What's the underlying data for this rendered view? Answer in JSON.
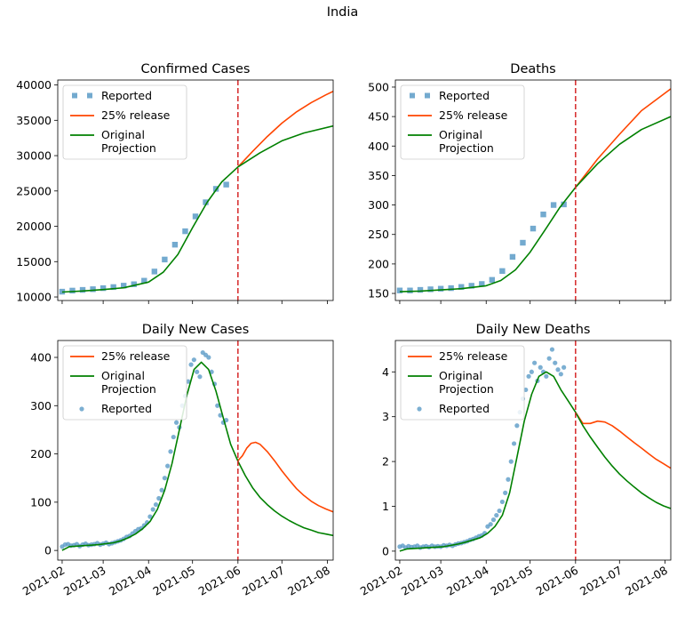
{
  "figure": {
    "title": "India"
  },
  "colors": {
    "reported": "#5b9bc7",
    "release": "#ff4500",
    "original": "#008000",
    "cutoff": "#d62728",
    "axis": "#000000"
  },
  "chart_data": [
    {
      "type": "line",
      "title": "Confirmed Cases",
      "xlabel": "",
      "ylabel": "",
      "x_ticks": [
        "2021-02",
        "2021-03",
        "2021-04",
        "2021-05",
        "2021-06",
        "2021-07",
        "2021-08"
      ],
      "y_ticks": [
        "10000",
        "15000",
        "20000",
        "25000",
        "30000",
        "35000",
        "40000"
      ],
      "ylim": [
        9500,
        40700
      ],
      "xlim_days": [
        -3,
        185
      ],
      "cutoff": "2021-06-01",
      "legend": {
        "position": "upper-left",
        "entries": [
          "Reported",
          "25% release",
          "Original\nProjection"
        ]
      },
      "series": [
        {
          "name": "Reported",
          "style": "square",
          "x": [
            "2021-02-01",
            "2021-02-08",
            "2021-02-15",
            "2021-02-22",
            "2021-03-01",
            "2021-03-08",
            "2021-03-15",
            "2021-03-22",
            "2021-03-29",
            "2021-04-05",
            "2021-04-12",
            "2021-04-19",
            "2021-04-26",
            "2021-05-03",
            "2021-05-10",
            "2021-05-17",
            "2021-05-24"
          ],
          "y": [
            10750,
            10900,
            11000,
            11100,
            11250,
            11400,
            11600,
            11800,
            12300,
            13600,
            15300,
            17400,
            19300,
            21400,
            23400,
            25300,
            25900
          ]
        },
        {
          "name": "25% release",
          "style": "line",
          "x": [
            "2021-06-01",
            "2021-06-11",
            "2021-06-21",
            "2021-07-01",
            "2021-07-11",
            "2021-07-21",
            "2021-07-31",
            "2021-08-05"
          ],
          "y": [
            28400,
            30600,
            32700,
            34600,
            36200,
            37500,
            38600,
            39100
          ]
        },
        {
          "name": "Original\nProjection",
          "style": "line",
          "x": [
            "2021-02-01",
            "2021-02-15",
            "2021-03-01",
            "2021-03-15",
            "2021-04-01",
            "2021-04-11",
            "2021-04-21",
            "2021-05-01",
            "2021-05-11",
            "2021-05-21",
            "2021-06-01",
            "2021-06-16",
            "2021-07-01",
            "2021-07-16",
            "2021-08-05"
          ],
          "y": [
            10700,
            10850,
            11050,
            11300,
            12100,
            13500,
            16000,
            19800,
            23400,
            26300,
            28400,
            30400,
            32100,
            33200,
            34200
          ]
        }
      ]
    },
    {
      "type": "line",
      "title": "Deaths",
      "xlabel": "",
      "ylabel": "",
      "x_ticks": [
        "2021-02",
        "2021-03",
        "2021-04",
        "2021-05",
        "2021-06",
        "2021-07",
        "2021-08"
      ],
      "y_ticks": [
        "150",
        "200",
        "250",
        "300",
        "350",
        "400",
        "450",
        "500"
      ],
      "ylim": [
        138,
        512
      ],
      "xlim_days": [
        -3,
        185
      ],
      "cutoff": "2021-06-01",
      "legend": {
        "position": "upper-left",
        "entries": [
          "Reported",
          "25% release",
          "Original\nProjection"
        ]
      },
      "series": [
        {
          "name": "Reported",
          "style": "square",
          "x": [
            "2021-02-01",
            "2021-02-08",
            "2021-02-15",
            "2021-02-22",
            "2021-03-01",
            "2021-03-08",
            "2021-03-15",
            "2021-03-22",
            "2021-03-29",
            "2021-04-05",
            "2021-04-12",
            "2021-04-19",
            "2021-04-26",
            "2021-05-03",
            "2021-05-10",
            "2021-05-17",
            "2021-05-24"
          ],
          "y": [
            155,
            155,
            156,
            157,
            158,
            159,
            161,
            163,
            166,
            173,
            188,
            212,
            236,
            260,
            284,
            300,
            301
          ]
        },
        {
          "name": "25% release",
          "style": "line",
          "x": [
            "2021-06-01",
            "2021-06-16",
            "2021-07-01",
            "2021-07-16",
            "2021-08-05"
          ],
          "y": [
            330,
            378,
            420,
            460,
            497
          ]
        },
        {
          "name": "Original\nProjection",
          "style": "line",
          "x": [
            "2021-02-01",
            "2021-02-15",
            "2021-03-01",
            "2021-03-15",
            "2021-04-01",
            "2021-04-11",
            "2021-04-21",
            "2021-05-01",
            "2021-05-11",
            "2021-05-21",
            "2021-06-01",
            "2021-06-16",
            "2021-07-01",
            "2021-07-16",
            "2021-08-05"
          ],
          "y": [
            153,
            154,
            156,
            158,
            163,
            172,
            190,
            220,
            257,
            295,
            330,
            370,
            403,
            428,
            450
          ]
        }
      ]
    },
    {
      "type": "line",
      "title": "Daily New Cases",
      "xlabel": "",
      "ylabel": "",
      "x_ticks": [
        "2021-02",
        "2021-03",
        "2021-04",
        "2021-05",
        "2021-06",
        "2021-07",
        "2021-08"
      ],
      "y_ticks": [
        "0",
        "100",
        "200",
        "300",
        "400"
      ],
      "ylim": [
        -20,
        435
      ],
      "xlim_days": [
        -3,
        185
      ],
      "cutoff": "2021-06-01",
      "legend": {
        "position": "upper-left",
        "entries": [
          "25% release",
          "Original\nProjection",
          "Reported"
        ]
      },
      "series": [
        {
          "name": "25% release",
          "style": "line",
          "x": [
            "2021-06-01",
            "2021-06-04",
            "2021-06-07",
            "2021-06-10",
            "2021-06-13",
            "2021-06-16",
            "2021-06-21",
            "2021-06-26",
            "2021-07-01",
            "2021-07-06",
            "2021-07-11",
            "2021-07-16",
            "2021-07-21",
            "2021-07-26",
            "2021-07-31",
            "2021-08-05"
          ],
          "y": [
            186,
            196,
            212,
            222,
            224,
            220,
            205,
            186,
            165,
            146,
            128,
            114,
            102,
            93,
            86,
            80
          ]
        },
        {
          "name": "Original\nProjection",
          "style": "line",
          "x": [
            "2021-02-01",
            "2021-02-06",
            "2021-02-11",
            "2021-02-16",
            "2021-02-21",
            "2021-02-26",
            "2021-03-03",
            "2021-03-08",
            "2021-03-13",
            "2021-03-18",
            "2021-03-23",
            "2021-03-28",
            "2021-04-02",
            "2021-04-07",
            "2021-04-12",
            "2021-04-17",
            "2021-04-22",
            "2021-04-27",
            "2021-05-02",
            "2021-05-07",
            "2021-05-12",
            "2021-05-17",
            "2021-05-22",
            "2021-05-27",
            "2021-06-01",
            "2021-06-06",
            "2021-06-11",
            "2021-06-16",
            "2021-06-21",
            "2021-06-26",
            "2021-07-01",
            "2021-07-06",
            "2021-07-11",
            "2021-07-16",
            "2021-07-21",
            "2021-07-26",
            "2021-07-31",
            "2021-08-05"
          ],
          "y": [
            0,
            8,
            9,
            10,
            11,
            12,
            14,
            16,
            20,
            26,
            34,
            45,
            60,
            85,
            125,
            180,
            250,
            320,
            375,
            390,
            375,
            330,
            275,
            220,
            185,
            155,
            130,
            110,
            95,
            82,
            71,
            62,
            54,
            47,
            42,
            37,
            34,
            31
          ]
        },
        {
          "name": "Reported",
          "style": "dot",
          "x": [
            "2021-02-01",
            "2021-02-03",
            "2021-02-05",
            "2021-02-07",
            "2021-02-09",
            "2021-02-11",
            "2021-02-13",
            "2021-02-15",
            "2021-02-17",
            "2021-02-19",
            "2021-02-21",
            "2021-02-23",
            "2021-02-25",
            "2021-02-27",
            "2021-03-01",
            "2021-03-03",
            "2021-03-05",
            "2021-03-07",
            "2021-03-09",
            "2021-03-11",
            "2021-03-13",
            "2021-03-15",
            "2021-03-17",
            "2021-03-19",
            "2021-03-21",
            "2021-03-23",
            "2021-03-25",
            "2021-03-27",
            "2021-03-29",
            "2021-03-31",
            "2021-04-02",
            "2021-04-04",
            "2021-04-06",
            "2021-04-08",
            "2021-04-10",
            "2021-04-12",
            "2021-04-14",
            "2021-04-16",
            "2021-04-18",
            "2021-04-20",
            "2021-04-22",
            "2021-04-24",
            "2021-04-26",
            "2021-04-28",
            "2021-04-30",
            "2021-05-02",
            "2021-05-04",
            "2021-05-06",
            "2021-05-08",
            "2021-05-10",
            "2021-05-12",
            "2021-05-14",
            "2021-05-16",
            "2021-05-18",
            "2021-05-20",
            "2021-05-22",
            "2021-05-24"
          ],
          "y": [
            8,
            12,
            13,
            10,
            11,
            13,
            9,
            12,
            14,
            11,
            12,
            13,
            15,
            12,
            14,
            16,
            13,
            15,
            17,
            19,
            21,
            24,
            28,
            30,
            35,
            40,
            44,
            46,
            52,
            58,
            70,
            85,
            95,
            108,
            125,
            150,
            175,
            205,
            235,
            265,
            255,
            300,
            320,
            350,
            385,
            395,
            370,
            360,
            410,
            405,
            400,
            370,
            345,
            300,
            280,
            265,
            270
          ]
        }
      ]
    },
    {
      "type": "line",
      "title": "Daily New Deaths",
      "xlabel": "",
      "ylabel": "",
      "x_ticks": [
        "2021-02",
        "2021-03",
        "2021-04",
        "2021-05",
        "2021-06",
        "2021-07",
        "2021-08"
      ],
      "y_ticks": [
        "0",
        "1",
        "2",
        "3",
        "4"
      ],
      "ylim": [
        -0.2,
        4.7
      ],
      "xlim_days": [
        -3,
        185
      ],
      "cutoff": "2021-06-01",
      "legend": {
        "position": "upper-left",
        "entries": [
          "25% release",
          "Original\nProjection",
          "Reported"
        ]
      },
      "series": [
        {
          "name": "25% release",
          "style": "line",
          "x": [
            "2021-06-01",
            "2021-06-06",
            "2021-06-11",
            "2021-06-16",
            "2021-06-21",
            "2021-06-26",
            "2021-07-01",
            "2021-07-06",
            "2021-07-11",
            "2021-07-16",
            "2021-07-21",
            "2021-07-26",
            "2021-07-31",
            "2021-08-05"
          ],
          "y": [
            3.1,
            2.85,
            2.85,
            2.9,
            2.88,
            2.8,
            2.68,
            2.55,
            2.42,
            2.3,
            2.17,
            2.05,
            1.95,
            1.85
          ]
        },
        {
          "name": "Original\nProjection",
          "style": "line",
          "x": [
            "2021-02-01",
            "2021-02-06",
            "2021-02-11",
            "2021-02-16",
            "2021-02-21",
            "2021-02-26",
            "2021-03-03",
            "2021-03-08",
            "2021-03-13",
            "2021-03-18",
            "2021-03-23",
            "2021-03-28",
            "2021-04-02",
            "2021-04-07",
            "2021-04-12",
            "2021-04-17",
            "2021-04-22",
            "2021-04-27",
            "2021-05-02",
            "2021-05-07",
            "2021-05-12",
            "2021-05-17",
            "2021-05-22",
            "2021-05-27",
            "2021-06-01",
            "2021-06-06",
            "2021-06-11",
            "2021-06-16",
            "2021-06-21",
            "2021-06-26",
            "2021-07-01",
            "2021-07-06",
            "2021-07-11",
            "2021-07-16",
            "2021-07-21",
            "2021-07-26",
            "2021-07-31",
            "2021-08-05"
          ],
          "y": [
            0,
            0.05,
            0.06,
            0.07,
            0.08,
            0.09,
            0.1,
            0.13,
            0.16,
            0.2,
            0.25,
            0.3,
            0.4,
            0.55,
            0.8,
            1.3,
            2.1,
            2.9,
            3.5,
            3.9,
            4.0,
            3.9,
            3.6,
            3.35,
            3.1,
            2.8,
            2.55,
            2.32,
            2.1,
            1.9,
            1.72,
            1.57,
            1.43,
            1.3,
            1.19,
            1.09,
            1.01,
            0.95
          ]
        },
        {
          "name": "Reported",
          "style": "dot",
          "x": [
            "2021-02-01",
            "2021-02-03",
            "2021-02-05",
            "2021-02-07",
            "2021-02-09",
            "2021-02-11",
            "2021-02-13",
            "2021-02-15",
            "2021-02-17",
            "2021-02-19",
            "2021-02-21",
            "2021-02-23",
            "2021-02-25",
            "2021-02-27",
            "2021-03-01",
            "2021-03-03",
            "2021-03-05",
            "2021-03-07",
            "2021-03-09",
            "2021-03-11",
            "2021-03-13",
            "2021-03-15",
            "2021-03-17",
            "2021-03-19",
            "2021-03-21",
            "2021-03-23",
            "2021-03-25",
            "2021-03-27",
            "2021-03-29",
            "2021-03-31",
            "2021-04-02",
            "2021-04-04",
            "2021-04-06",
            "2021-04-08",
            "2021-04-10",
            "2021-04-12",
            "2021-04-14",
            "2021-04-16",
            "2021-04-18",
            "2021-04-20",
            "2021-04-22",
            "2021-04-24",
            "2021-04-26",
            "2021-04-28",
            "2021-04-30",
            "2021-05-02",
            "2021-05-04",
            "2021-05-06",
            "2021-05-08",
            "2021-05-10",
            "2021-05-12",
            "2021-05-14",
            "2021-05-16",
            "2021-05-18",
            "2021-05-20",
            "2021-05-22",
            "2021-05-24"
          ],
          "y": [
            0.1,
            0.12,
            0.08,
            0.11,
            0.09,
            0.1,
            0.12,
            0.08,
            0.1,
            0.11,
            0.09,
            0.12,
            0.1,
            0.11,
            0.1,
            0.13,
            0.12,
            0.14,
            0.12,
            0.15,
            0.17,
            0.18,
            0.2,
            0.22,
            0.25,
            0.27,
            0.3,
            0.33,
            0.35,
            0.4,
            0.55,
            0.6,
            0.7,
            0.8,
            0.9,
            1.1,
            1.3,
            1.6,
            2.0,
            2.4,
            2.8,
            3.1,
            3.4,
            3.6,
            3.9,
            4.0,
            4.2,
            3.8,
            4.1,
            4.0,
            3.9,
            4.3,
            4.5,
            4.2,
            4.05,
            3.95,
            4.1
          ]
        }
      ]
    }
  ]
}
